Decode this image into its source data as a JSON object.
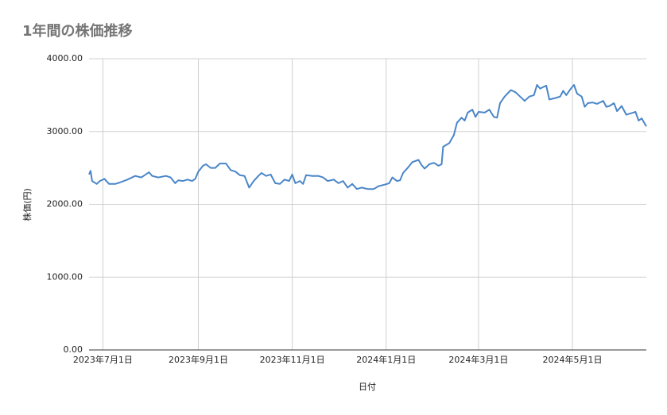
{
  "chart_data": {
    "type": "line",
    "title": "1年間の株価推移",
    "x_label": "日付",
    "y_label": "株価(円)",
    "grid": true,
    "xlim": [
      "2023-06-22",
      "2024-06-18"
    ],
    "xticks": [
      {
        "value": "2023-07-01",
        "label": "2023年7月1日"
      },
      {
        "value": "2023-09-01",
        "label": "2023年9月1日"
      },
      {
        "value": "2023-11-01",
        "label": "2023年11月1日"
      },
      {
        "value": "2024-01-01",
        "label": "2024年1月1日"
      },
      {
        "value": "2024-03-01",
        "label": "2024年3月1日"
      },
      {
        "value": "2024-05-01",
        "label": "2024年5月1日"
      }
    ],
    "ylim": [
      0,
      4000
    ],
    "yticks": [
      {
        "value": 0,
        "label": "0.00"
      },
      {
        "value": 1000,
        "label": "1000.00"
      },
      {
        "value": 2000,
        "label": "2000.00"
      },
      {
        "value": 3000,
        "label": "3000.00"
      },
      {
        "value": 4000,
        "label": "4000.00"
      }
    ],
    "x": [
      "2023-06-22",
      "2023-06-23",
      "2023-06-24",
      "2023-06-27",
      "2023-06-29",
      "2023-07-02",
      "2023-07-05",
      "2023-07-09",
      "2023-07-12",
      "2023-07-17",
      "2023-07-22",
      "2023-07-26",
      "2023-07-31",
      "2023-08-02",
      "2023-08-06",
      "2023-08-11",
      "2023-08-14",
      "2023-08-17",
      "2023-08-19",
      "2023-08-22",
      "2023-08-25",
      "2023-08-28",
      "2023-08-30",
      "2023-09-01",
      "2023-09-04",
      "2023-09-06",
      "2023-09-09",
      "2023-09-12",
      "2023-09-15",
      "2023-09-19",
      "2023-09-22",
      "2023-09-25",
      "2023-09-28",
      "2023-10-01",
      "2023-10-04",
      "2023-10-07",
      "2023-10-10",
      "2023-10-12",
      "2023-10-15",
      "2023-10-18",
      "2023-10-21",
      "2023-10-24",
      "2023-10-27",
      "2023-10-30",
      "2023-11-01",
      "2023-11-03",
      "2023-11-06",
      "2023-11-08",
      "2023-11-10",
      "2023-11-14",
      "2023-11-18",
      "2023-11-21",
      "2023-11-24",
      "2023-11-28",
      "2023-12-01",
      "2023-12-04",
      "2023-12-07",
      "2023-12-10",
      "2023-12-13",
      "2023-12-16",
      "2023-12-20",
      "2023-12-24",
      "2023-12-27",
      "2023-12-31",
      "2024-01-03",
      "2024-01-05",
      "2024-01-08",
      "2024-01-10",
      "2024-01-12",
      "2024-01-15",
      "2024-01-18",
      "2024-01-22",
      "2024-01-24",
      "2024-01-26",
      "2024-01-29",
      "2024-02-01",
      "2024-02-04",
      "2024-02-06",
      "2024-02-07",
      "2024-02-11",
      "2024-02-14",
      "2024-02-16",
      "2024-02-19",
      "2024-02-21",
      "2024-02-23",
      "2024-02-26",
      "2024-02-28",
      "2024-03-01",
      "2024-03-05",
      "2024-03-08",
      "2024-03-11",
      "2024-03-13",
      "2024-03-15",
      "2024-03-18",
      "2024-03-22",
      "2024-03-25",
      "2024-03-28",
      "2024-03-31",
      "2024-04-03",
      "2024-04-06",
      "2024-04-08",
      "2024-04-10",
      "2024-04-14",
      "2024-04-16",
      "2024-04-20",
      "2024-04-23",
      "2024-04-25",
      "2024-04-27",
      "2024-04-30",
      "2024-05-02",
      "2024-05-04",
      "2024-05-07",
      "2024-05-09",
      "2024-05-11",
      "2024-05-14",
      "2024-05-17",
      "2024-05-21",
      "2024-05-23",
      "2024-05-25",
      "2024-05-28",
      "2024-05-30",
      "2024-06-02",
      "2024-06-05",
      "2024-06-08",
      "2024-06-11",
      "2024-06-13",
      "2024-06-15",
      "2024-06-18"
    ],
    "series": [
      {
        "name": "株価",
        "color": "#4a86c8",
        "values": [
          2410,
          2460,
          2320,
          2280,
          2320,
          2350,
          2280,
          2280,
          2300,
          2340,
          2390,
          2370,
          2440,
          2390,
          2370,
          2390,
          2370,
          2290,
          2330,
          2320,
          2340,
          2320,
          2350,
          2450,
          2530,
          2550,
          2500,
          2500,
          2560,
          2560,
          2470,
          2450,
          2400,
          2390,
          2230,
          2320,
          2390,
          2430,
          2390,
          2410,
          2290,
          2280,
          2340,
          2320,
          2410,
          2290,
          2320,
          2280,
          2400,
          2390,
          2390,
          2370,
          2320,
          2340,
          2290,
          2320,
          2230,
          2280,
          2210,
          2230,
          2210,
          2210,
          2250,
          2270,
          2290,
          2370,
          2320,
          2330,
          2430,
          2500,
          2580,
          2610,
          2540,
          2490,
          2550,
          2570,
          2530,
          2550,
          2790,
          2840,
          2950,
          3120,
          3190,
          3150,
          3260,
          3300,
          3200,
          3270,
          3260,
          3300,
          3200,
          3190,
          3390,
          3480,
          3570,
          3540,
          3480,
          3420,
          3480,
          3500,
          3640,
          3590,
          3630,
          3440,
          3460,
          3480,
          3560,
          3500,
          3590,
          3640,
          3520,
          3480,
          3340,
          3390,
          3400,
          3380,
          3420,
          3340,
          3350,
          3390,
          3280,
          3350,
          3230,
          3250,
          3270,
          3150,
          3180,
          3070
        ]
      }
    ]
  }
}
